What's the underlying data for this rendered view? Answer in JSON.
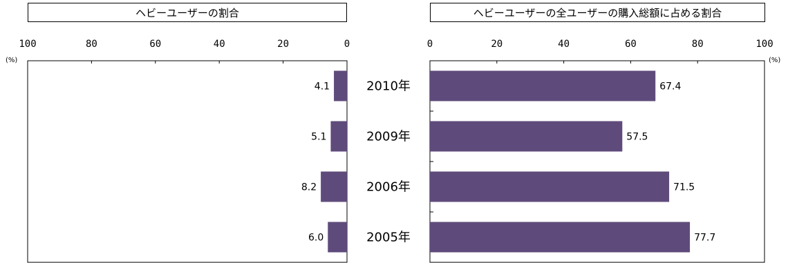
{
  "chart_data": [
    {
      "type": "bar",
      "orientation": "horizontal",
      "direction": "right-to-left",
      "title": "ヘビーユーザーの割合",
      "unit": "(%)",
      "xlim": [
        0,
        100
      ],
      "ticks": [
        "0",
        "20",
        "40",
        "60",
        "80",
        "100"
      ],
      "tick_values": [
        0,
        20,
        40,
        60,
        80,
        100
      ],
      "categories": [
        "2010年",
        "2009年",
        "2006年",
        "2005年"
      ],
      "values": [
        4.1,
        5.1,
        8.2,
        6.0
      ],
      "data_labels": [
        "4.1",
        "5.1",
        "8.2",
        "6.0"
      ],
      "bar_color": "#5f4b7b"
    },
    {
      "type": "bar",
      "orientation": "horizontal",
      "direction": "left-to-right",
      "title": "ヘビーユーザーの全ユーザーの購入総額に占める割合",
      "unit": "(%)",
      "xlim": [
        0,
        100
      ],
      "ticks": [
        "0",
        "20",
        "40",
        "60",
        "80",
        "100"
      ],
      "tick_values": [
        0,
        20,
        40,
        60,
        80,
        100
      ],
      "categories": [
        "2010年",
        "2009年",
        "2006年",
        "2005年"
      ],
      "values": [
        67.4,
        57.5,
        71.5,
        77.7
      ],
      "data_labels": [
        "67.4",
        "57.5",
        "71.5",
        "77.7"
      ],
      "bar_color": "#5f4b7b"
    }
  ]
}
